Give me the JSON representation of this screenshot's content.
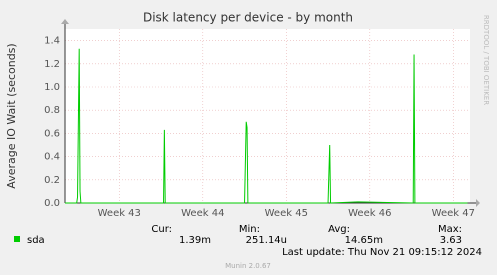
{
  "chart_data": {
    "type": "line",
    "title": "Disk latency per device - by month",
    "y_label": "Average IO Wait (seconds)",
    "side_label": "RRDTOOL / TOBI OETIKER",
    "x": [
      42.35,
      42.49,
      42.5,
      42.52,
      42.53,
      42.54,
      43.53,
      43.54,
      43.55,
      44.5,
      44.52,
      44.53,
      44.54,
      45.5,
      45.52,
      45.53,
      45.86,
      46.52,
      46.53,
      46.54,
      47.17
    ],
    "series": [
      {
        "name": "sda",
        "color": "#00cc00",
        "values": [
          0,
          0,
          0.05,
          1.33,
          0.1,
          0,
          0,
          0.63,
          0,
          0,
          0.7,
          0.65,
          0,
          0,
          0.5,
          0,
          0.01,
          0,
          1.28,
          0,
          0
        ]
      }
    ],
    "xlim": [
      42.35,
      47.2
    ],
    "xticks": [
      {
        "value": 43,
        "label": "Week 43"
      },
      {
        "value": 44,
        "label": "Week 44"
      },
      {
        "value": 45,
        "label": "Week 45"
      },
      {
        "value": 46,
        "label": "Week 46"
      },
      {
        "value": 47,
        "label": "Week 47"
      }
    ],
    "ylim": [
      0,
      1.5
    ],
    "yticks": [
      {
        "value": 0,
        "label": "0.0"
      },
      0.2,
      0.4,
      0.6,
      0.8,
      {
        "value": 1,
        "label": "1.0"
      },
      1.2,
      1.4
    ],
    "grid": true,
    "stats": [
      {
        "label": "Cur:",
        "value": "1.39m"
      },
      {
        "label": "Min:",
        "value": "251.14u"
      },
      {
        "label": "Avg:",
        "value": "14.65m"
      },
      {
        "label": "Max:",
        "value": "3.63"
      }
    ],
    "last_update": "Last update: Thu Nov 21 09:15:12 2024",
    "footer": "Munin 2.0.67"
  }
}
